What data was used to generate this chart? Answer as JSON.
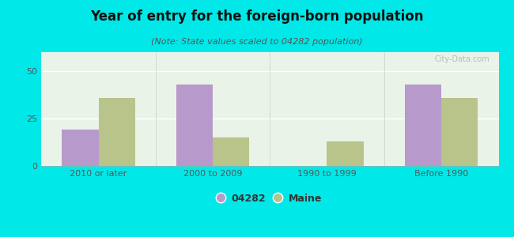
{
  "title": "Year of entry for the foreign-born population",
  "subtitle": "(Note: State values scaled to 04282 population)",
  "categories": [
    "2010 or later",
    "2000 to 2009",
    "1990 to 1999",
    "Before 1990"
  ],
  "values_04282": [
    19,
    43,
    0,
    43
  ],
  "values_maine": [
    36,
    15,
    13,
    36
  ],
  "color_04282": "#b899cc",
  "color_maine": "#b8c48a",
  "background_outer": "#00e8e8",
  "background_plot_top": "#f0f8f0",
  "background_plot_bottom": "#e0eed8",
  "ylim": [
    0,
    60
  ],
  "yticks": [
    0,
    25,
    50
  ],
  "bar_width": 0.32,
  "legend_label_04282": "04282",
  "legend_label_maine": "Maine",
  "title_fontsize": 12,
  "subtitle_fontsize": 8,
  "tick_fontsize": 8,
  "legend_fontsize": 9
}
